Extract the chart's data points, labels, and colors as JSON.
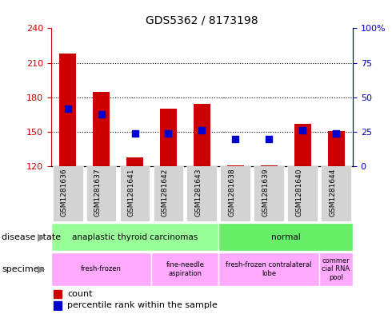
{
  "title": "GDS5362 / 8173198",
  "samples": [
    "GSM1281636",
    "GSM1281637",
    "GSM1281641",
    "GSM1281642",
    "GSM1281643",
    "GSM1281638",
    "GSM1281639",
    "GSM1281640",
    "GSM1281644"
  ],
  "counts": [
    218,
    185,
    128,
    170,
    174,
    121,
    121,
    157,
    151
  ],
  "percentile_ranks": [
    42,
    38,
    24,
    24,
    26,
    20,
    20,
    26,
    24
  ],
  "ylim_left": [
    120,
    240
  ],
  "ylim_right": [
    0,
    100
  ],
  "yticks_left": [
    120,
    150,
    180,
    210,
    240
  ],
  "yticks_right": [
    0,
    25,
    50,
    75,
    100
  ],
  "bar_color": "#cc0000",
  "dot_color": "#0000cc",
  "disease_state_groups": [
    {
      "label": "anaplastic thyroid carcinomas",
      "start": 0,
      "end": 5,
      "color": "#99ff99"
    },
    {
      "label": "normal",
      "start": 5,
      "end": 9,
      "color": "#66ee66"
    }
  ],
  "specimen_groups": [
    {
      "label": "fresh-frozen",
      "start": 0,
      "end": 3,
      "color": "#ffaaff"
    },
    {
      "label": "fine-needle\naspiration",
      "start": 3,
      "end": 5,
      "color": "#ffaaff"
    },
    {
      "label": "fresh-frozen contralateral\nlobe",
      "start": 5,
      "end": 8,
      "color": "#ffaaff"
    },
    {
      "label": "commer\ncial RNA\npool",
      "start": 8,
      "end": 9,
      "color": "#ffaaff"
    }
  ],
  "axis_color_left": "#cc0000",
  "axis_color_right": "#0000cc",
  "bg_color": "#ffffff",
  "plot_bg": "#ffffff",
  "bar_width": 0.5,
  "dot_size": 28,
  "col_bg": "#d3d3d3"
}
